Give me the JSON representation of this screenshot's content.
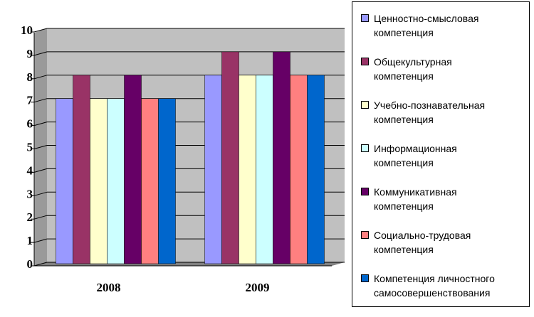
{
  "chart_data": {
    "type": "bar",
    "categories": [
      "2008",
      "2009"
    ],
    "ylim": [
      0,
      10
    ],
    "y_ticks": [
      "0",
      "1",
      "2",
      "3",
      "4",
      "5",
      "6",
      "7",
      "8",
      "9",
      "10"
    ],
    "grid": true,
    "legend_position": "right",
    "colors": {
      "plot_background": "#c0c0c0",
      "gridline": "#000000"
    },
    "series": [
      {
        "name": "Ценностно-смысловая компетенция",
        "values": [
          7,
          8
        ],
        "color": "#9999ff"
      },
      {
        "name": "Общекультурная компетенция",
        "values": [
          8,
          9
        ],
        "color": "#993366"
      },
      {
        "name": "Учебно-познавательная компетенция",
        "values": [
          7,
          8
        ],
        "color": "#ffffcc"
      },
      {
        "name": "Информационная компетенция",
        "values": [
          7,
          8
        ],
        "color": "#ccffff"
      },
      {
        "name": "Коммуникативная компетенция",
        "values": [
          8,
          9
        ],
        "color": "#660066"
      },
      {
        "name": "Социально-трудовая компетенция",
        "values": [
          7,
          8
        ],
        "color": "#ff8080"
      },
      {
        "name": "Компетенция личностного самосовершенствования",
        "values": [
          7,
          8
        ],
        "color": "#0066cc"
      }
    ]
  }
}
